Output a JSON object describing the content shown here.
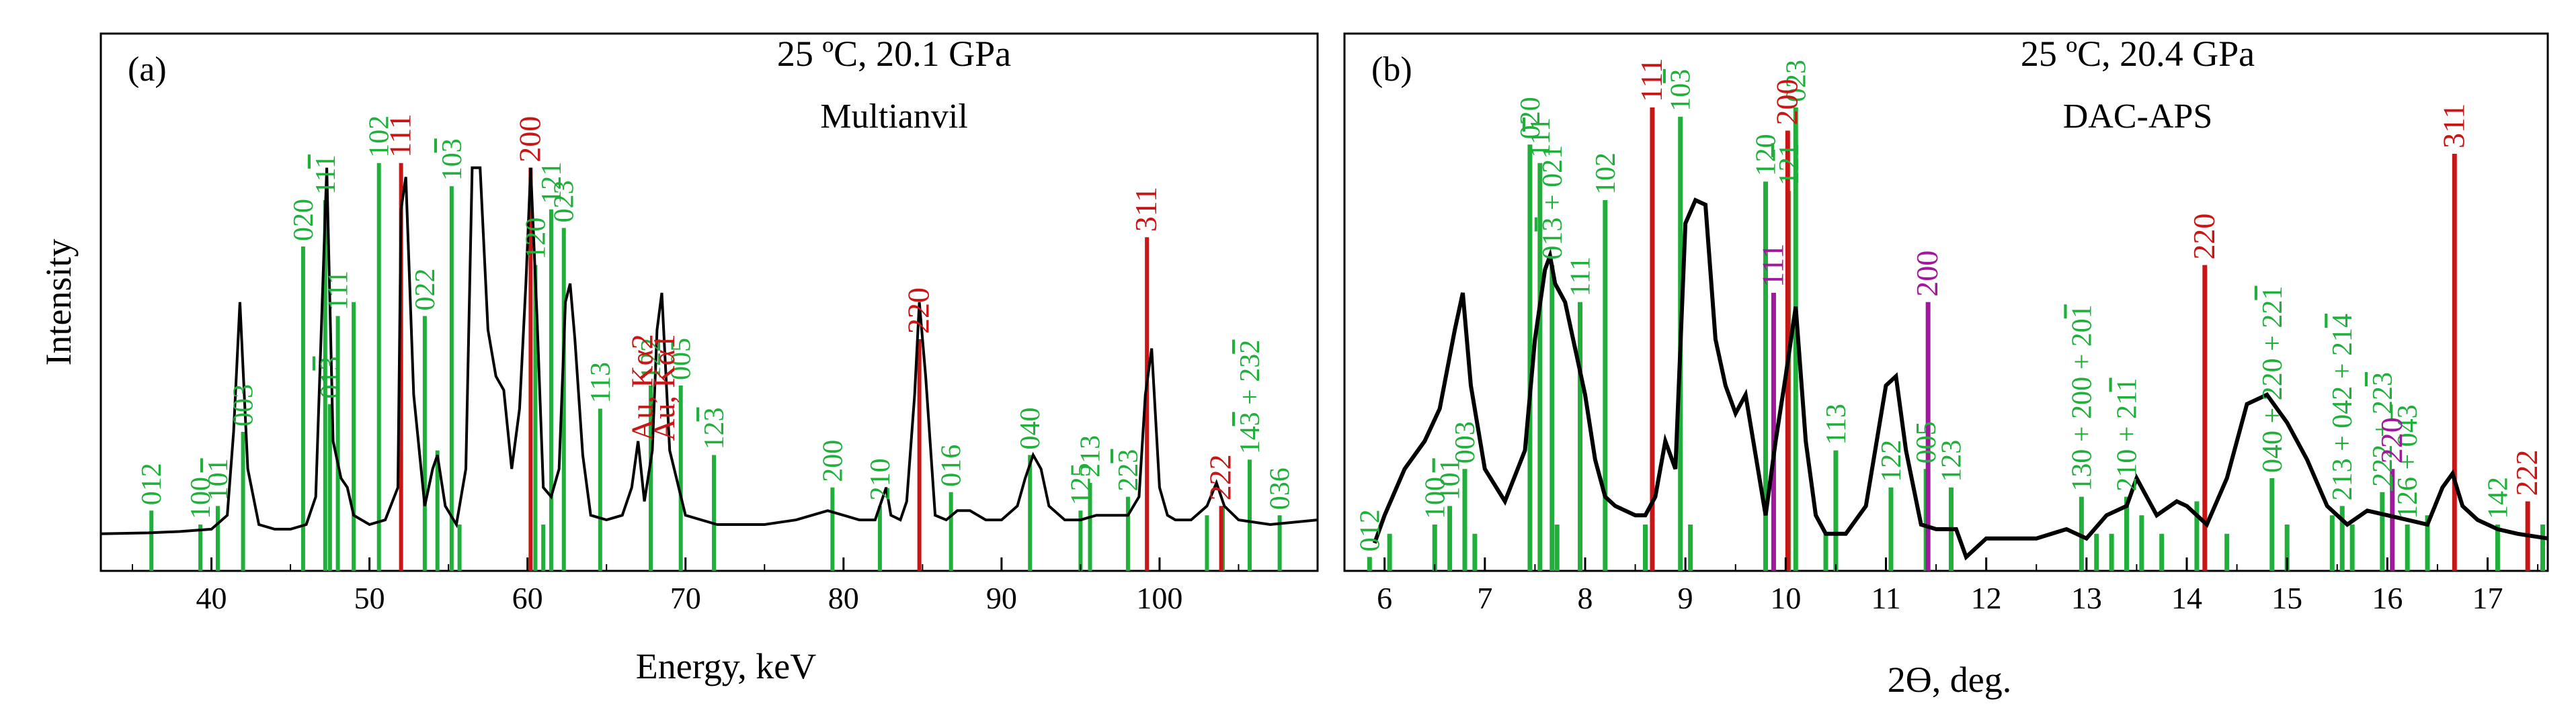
{
  "colors": {
    "phase": "#1faf3a",
    "gold": "#c81616",
    "pt": "#a0189c",
    "trace": "#000000"
  },
  "chart_data": [
    {
      "type": "line",
      "panel_label": "(a)",
      "title": "25 ºC, 20.1 GPa",
      "subtitle": "Multianvil",
      "xlabel": "Energy, keV",
      "ylabel": "Intensity",
      "xlim": [
        33,
        110
      ],
      "ylim": [
        0,
        100
      ],
      "xticks": [
        40,
        50,
        60,
        70,
        80,
        90,
        100
      ],
      "xtick_labels": [
        "40",
        "50",
        "60",
        "70",
        "80",
        "90",
        "100"
      ],
      "spectrum": {
        "baseline": 8,
        "x": [
          33,
          36,
          38,
          40,
          41,
          41.4,
          41.8,
          42.3,
          43,
          44,
          45,
          46,
          46.6,
          47.0,
          47.3,
          47.7,
          48.2,
          48.6,
          49,
          50,
          51,
          51.8,
          52.0,
          52.3,
          52.8,
          53.5,
          54.0,
          54.3,
          54.8,
          55.5,
          56.1,
          56.5,
          57.0,
          57.5,
          58.0,
          58.5,
          59.0,
          59.5,
          59.9,
          60.2,
          60.6,
          61,
          61.5,
          62.0,
          62.4,
          62.7,
          63.0,
          63.5,
          64,
          65,
          66,
          66.6,
          67.0,
          67.4,
          67.9,
          68.2,
          68.5,
          69,
          70,
          72,
          75,
          77,
          78,
          79,
          80,
          81,
          82,
          82.7,
          83,
          83.6,
          84,
          84.5,
          84.8,
          85.2,
          85.8,
          86.5,
          87.2,
          88,
          89,
          90,
          91,
          91.5,
          92,
          92.5,
          93,
          94,
          95,
          96,
          97,
          98,
          98.7,
          99.1,
          99.5,
          100,
          100.5,
          101,
          102,
          103,
          103.6,
          104.1,
          105,
          107,
          110
        ],
        "y": [
          8,
          8.2,
          8.5,
          9,
          12,
          30,
          58,
          22,
          10,
          9,
          9,
          10,
          16,
          57,
          87,
          28,
          20,
          18,
          12,
          10,
          11,
          18,
          78,
          85,
          38,
          14,
          22,
          25,
          14,
          10,
          22,
          87,
          87,
          52,
          42,
          39,
          22,
          35,
          62,
          87,
          55,
          18,
          16,
          22,
          58,
          62,
          50,
          25,
          12,
          11,
          12,
          18,
          28,
          15,
          26,
          52,
          60,
          26,
          12,
          10,
          10,
          11,
          12,
          13,
          12,
          11,
          11,
          18,
          12,
          11,
          15,
          38,
          58,
          42,
          12,
          11,
          13,
          13,
          11,
          11,
          14,
          20,
          25,
          22,
          14,
          11,
          11,
          12,
          12,
          12,
          16,
          38,
          48,
          18,
          12,
          11,
          11,
          14,
          19,
          14,
          11,
          10,
          11
        ]
      },
      "phase_lines": [
        {
          "x": 36.2,
          "h": 13,
          "label": "012"
        },
        {
          "x": 39.3,
          "h": 10,
          "label": "100"
        },
        {
          "x": 40.4,
          "h": 14,
          "label": "10<ov>1</ov>"
        },
        {
          "x": 42.0,
          "h": 30,
          "label": "003"
        },
        {
          "x": 45.8,
          "h": 70,
          "label": "020"
        },
        {
          "x": 47.2,
          "h": 80,
          "label": "11<ov>1</ov>"
        },
        {
          "x": 47.5,
          "h": 36,
          "label": "01<ov>3</ov>"
        },
        {
          "x": 48.0,
          "h": 55,
          "label": "111"
        },
        {
          "x": 49.0,
          "h": 58,
          "label": ""
        },
        {
          "x": 50.6,
          "h": 88,
          "label": "102"
        },
        {
          "x": 53.5,
          "h": 55,
          "label": "022"
        },
        {
          "x": 54.3,
          "h": 26,
          "label": ""
        },
        {
          "x": 55.2,
          "h": 83,
          "label": "10<ov>3</ov>"
        },
        {
          "x": 55.7,
          "h": 10,
          "label": ""
        },
        {
          "x": 60.5,
          "h": 66,
          "label": "120"
        },
        {
          "x": 61.0,
          "h": 10,
          "label": ""
        },
        {
          "x": 61.5,
          "h": 78,
          "label": "121"
        },
        {
          "x": 62.3,
          "h": 74,
          "label": "023"
        },
        {
          "x": 64.6,
          "h": 35,
          "label": "113"
        },
        {
          "x": 67.8,
          "h": 40,
          "label": "122"
        },
        {
          "x": 69.7,
          "h": 40,
          "label": "005"
        },
        {
          "x": 71.8,
          "h": 25,
          "label": "12<ov>3</ov>"
        },
        {
          "x": 79.3,
          "h": 18,
          "label": "200"
        },
        {
          "x": 82.3,
          "h": 14,
          "label": "210"
        },
        {
          "x": 86.8,
          "h": 17,
          "label": "016"
        },
        {
          "x": 91.8,
          "h": 25,
          "label": "040"
        },
        {
          "x": 95.0,
          "h": 13,
          "label": "125"
        },
        {
          "x": 95.6,
          "h": 19,
          "label": "213"
        },
        {
          "x": 98.0,
          "h": 16,
          "label": "22<ov>3</ov>"
        },
        {
          "x": 103.0,
          "h": 12,
          "label": ""
        },
        {
          "x": 104.0,
          "h": 14,
          "label": ""
        },
        {
          "x": 105.7,
          "h": 24,
          "label": "14<ov>3</ov> + 23<ov>2</ov>"
        },
        {
          "x": 107.6,
          "h": 12,
          "label": "036"
        }
      ],
      "gold_lines": [
        {
          "x": 52.0,
          "h": 88,
          "label": "111"
        },
        {
          "x": 60.2,
          "h": 87,
          "label": "200"
        },
        {
          "x": 84.8,
          "h": 50,
          "label": "220"
        },
        {
          "x": 99.2,
          "h": 72,
          "label": "311"
        },
        {
          "x": 103.9,
          "h": 14,
          "label": "222"
        }
      ],
      "annotations": [
        {
          "x": 67.3,
          "label": "Au, Kα2"
        },
        {
          "x": 68.7,
          "label": "Au, Kα1"
        }
      ]
    },
    {
      "type": "line",
      "panel_label": "(b)",
      "title": "25 ºC, 20.4 GPa",
      "subtitle": "DAC-APS",
      "xlabel": "2Ɵ, deg.",
      "xlim": [
        5.6,
        17.6
      ],
      "ylim": [
        0,
        100
      ],
      "xticks": [
        6,
        7,
        8,
        9,
        10,
        11,
        12,
        13,
        14,
        15,
        16,
        17
      ],
      "xtick_labels": [
        "6",
        "7",
        "8",
        "9",
        "10",
        "11",
        "12",
        "13",
        "14",
        "15",
        "16",
        "17"
      ],
      "spectrum": {
        "baseline": 8,
        "x": [
          5.9,
          6.0,
          6.2,
          6.4,
          6.55,
          6.7,
          6.78,
          6.86,
          7.0,
          7.2,
          7.4,
          7.5,
          7.6,
          7.65,
          7.7,
          7.8,
          7.9,
          8.0,
          8.1,
          8.2,
          8.3,
          8.5,
          8.6,
          8.7,
          8.8,
          8.9,
          9.0,
          9.1,
          9.2,
          9.3,
          9.4,
          9.5,
          9.6,
          9.7,
          9.8,
          9.9,
          10.0,
          10.1,
          10.2,
          10.3,
          10.4,
          10.6,
          10.8,
          11.0,
          11.1,
          11.2,
          11.35,
          11.5,
          11.7,
          11.8,
          12.0,
          12.5,
          12.8,
          13.0,
          13.2,
          13.4,
          13.5,
          13.6,
          13.7,
          13.9,
          14.0,
          14.2,
          14.4,
          14.6,
          14.8,
          15.0,
          15.2,
          15.4,
          15.6,
          15.8,
          16.0,
          16.2,
          16.4,
          16.55,
          16.65,
          16.75,
          16.9,
          17.1,
          17.3,
          17.6
        ],
        "y": [
          6,
          12,
          22,
          28,
          35,
          52,
          60,
          40,
          22,
          15,
          26,
          50,
          65,
          68,
          62,
          58,
          48,
          38,
          24,
          16,
          14,
          12,
          12,
          16,
          28,
          22,
          75,
          80,
          79,
          50,
          40,
          34,
          38,
          25,
          12,
          28,
          42,
          57,
          28,
          12,
          8,
          8,
          14,
          40,
          42,
          26,
          10,
          9,
          9,
          3,
          7,
          7,
          9,
          7,
          12,
          14,
          20,
          16,
          12,
          15,
          14,
          10,
          20,
          36,
          38,
          32,
          24,
          14,
          10,
          13,
          12,
          11,
          10,
          18,
          21,
          14,
          11,
          9,
          8,
          7
        ]
      },
      "phase_lines": [
        {
          "x": 5.85,
          "h": 3,
          "label": "012"
        },
        {
          "x": 6.05,
          "h": 8,
          "label": ""
        },
        {
          "x": 6.5,
          "h": 10,
          "label": "100"
        },
        {
          "x": 6.65,
          "h": 14,
          "label": "10<ov>1</ov>"
        },
        {
          "x": 6.8,
          "h": 22,
          "label": "003"
        },
        {
          "x": 6.9,
          "h": 8,
          "label": ""
        },
        {
          "x": 7.45,
          "h": 92,
          "label": "020"
        },
        {
          "x": 7.55,
          "h": 88,
          "label": "11<ov>1</ov>"
        },
        {
          "x": 7.67,
          "h": 66,
          "label": "01<ov>3</ov> + 021"
        },
        {
          "x": 7.72,
          "h": 10,
          "label": ""
        },
        {
          "x": 7.95,
          "h": 58,
          "label": "111"
        },
        {
          "x": 8.2,
          "h": 80,
          "label": "102"
        },
        {
          "x": 8.6,
          "h": 10,
          "label": ""
        },
        {
          "x": 8.95,
          "h": 98,
          "label": "10<ov>3</ov>"
        },
        {
          "x": 9.05,
          "h": 10,
          "label": ""
        },
        {
          "x": 9.8,
          "h": 84,
          "label": "120"
        },
        {
          "x": 10.03,
          "h": 82,
          "label": "12<ov>1</ov>"
        },
        {
          "x": 10.1,
          "h": 100,
          "label": "023"
        },
        {
          "x": 10.4,
          "h": 8,
          "label": ""
        },
        {
          "x": 10.5,
          "h": 26,
          "label": "113"
        },
        {
          "x": 11.05,
          "h": 18,
          "label": "122"
        },
        {
          "x": 11.4,
          "h": 22,
          "label": "005"
        },
        {
          "x": 11.65,
          "h": 18,
          "label": "123"
        },
        {
          "x": 12.95,
          "h": 16,
          "label": "130 + 200 + 20<ov>1</ov>"
        },
        {
          "x": 13.1,
          "h": 8,
          "label": ""
        },
        {
          "x": 13.25,
          "h": 8,
          "label": ""
        },
        {
          "x": 13.4,
          "h": 16,
          "label": "210 + 21<ov>1</ov>"
        },
        {
          "x": 13.55,
          "h": 12,
          "label": ""
        },
        {
          "x": 13.75,
          "h": 8,
          "label": ""
        },
        {
          "x": 14.1,
          "h": 15,
          "label": ""
        },
        {
          "x": 14.4,
          "h": 8,
          "label": ""
        },
        {
          "x": 14.85,
          "h": 20,
          "label": "040 + 220 + 22<ov>1</ov>"
        },
        {
          "x": 15.0,
          "h": 10,
          "label": ""
        },
        {
          "x": 15.45,
          "h": 12,
          "label": ""
        },
        {
          "x": 15.55,
          "h": 14,
          "label": "213 + 042 + 21<ov>4</ov>"
        },
        {
          "x": 15.65,
          "h": 10,
          "label": ""
        },
        {
          "x": 15.95,
          "h": 17,
          "label": "222 + 22<ov>3</ov>"
        },
        {
          "x": 16.2,
          "h": 10,
          "label": "12<ov>6</ov> + 04<ov>3</ov>"
        },
        {
          "x": 16.4,
          "h": 12,
          "label": ""
        },
        {
          "x": 17.1,
          "h": 10,
          "label": "142"
        },
        {
          "x": 17.55,
          "h": 10,
          "label": ""
        }
      ],
      "gold_lines": [
        {
          "x": 8.67,
          "h": 100,
          "label": "111"
        },
        {
          "x": 10.02,
          "h": 95,
          "label": "200"
        },
        {
          "x": 14.18,
          "h": 66,
          "label": "220"
        },
        {
          "x": 16.67,
          "h": 90,
          "label": "311"
        },
        {
          "x": 17.4,
          "h": 15,
          "label": "222"
        }
      ],
      "pt_lines": [
        {
          "x": 9.88,
          "h": 60,
          "label": "111"
        },
        {
          "x": 11.42,
          "h": 58,
          "label": "200"
        },
        {
          "x": 16.05,
          "h": 22,
          "label": "220"
        }
      ]
    }
  ]
}
